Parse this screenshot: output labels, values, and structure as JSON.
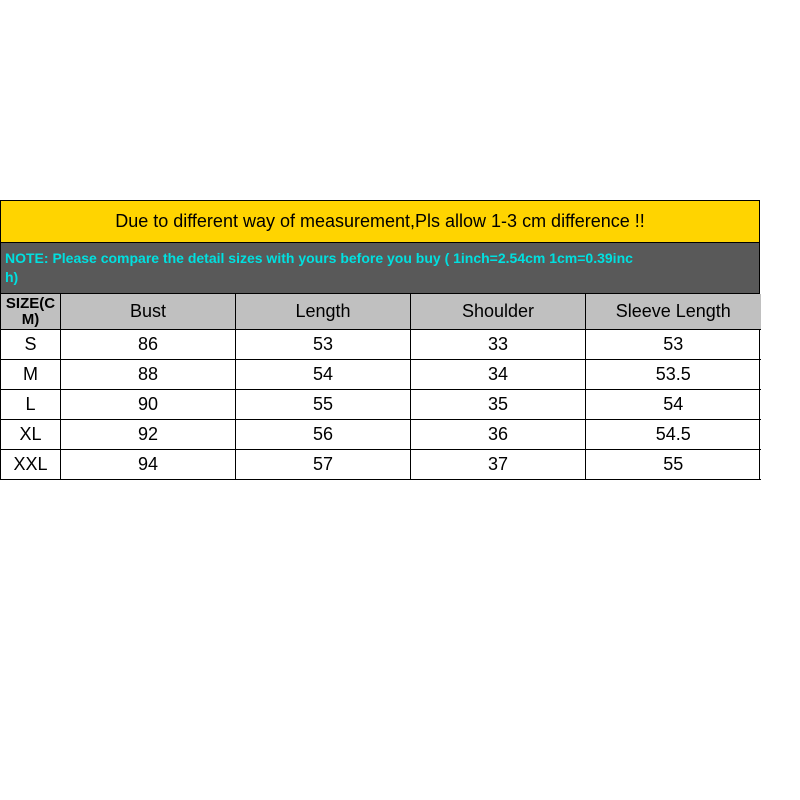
{
  "banner": {
    "text": "Due to different way of measurement,Pls allow 1-3 cm difference !!",
    "bg": "#ffd400",
    "fg": "#000000"
  },
  "note": {
    "line1": "NOTE: Please compare the detail sizes with yours before you buy ( 1inch=2.54cm 1cm=0.39inc",
    "line2": "h)",
    "bg": "#595959",
    "fg": "#00e0e0"
  },
  "table": {
    "header_bg": "#c0c0c0",
    "columns": [
      "SIZE(CM)",
      "Bust",
      "Length",
      "Shoulder",
      "Sleeve Length"
    ],
    "rows": [
      [
        "S",
        "86",
        "53",
        "33",
        "53"
      ],
      [
        "M",
        "88",
        "54",
        "34",
        "53.5"
      ],
      [
        "L",
        "90",
        "55",
        "35",
        "54"
      ],
      [
        "XL",
        "92",
        "56",
        "36",
        "54.5"
      ],
      [
        "XXL",
        "94",
        "57",
        "37",
        "55"
      ]
    ]
  }
}
